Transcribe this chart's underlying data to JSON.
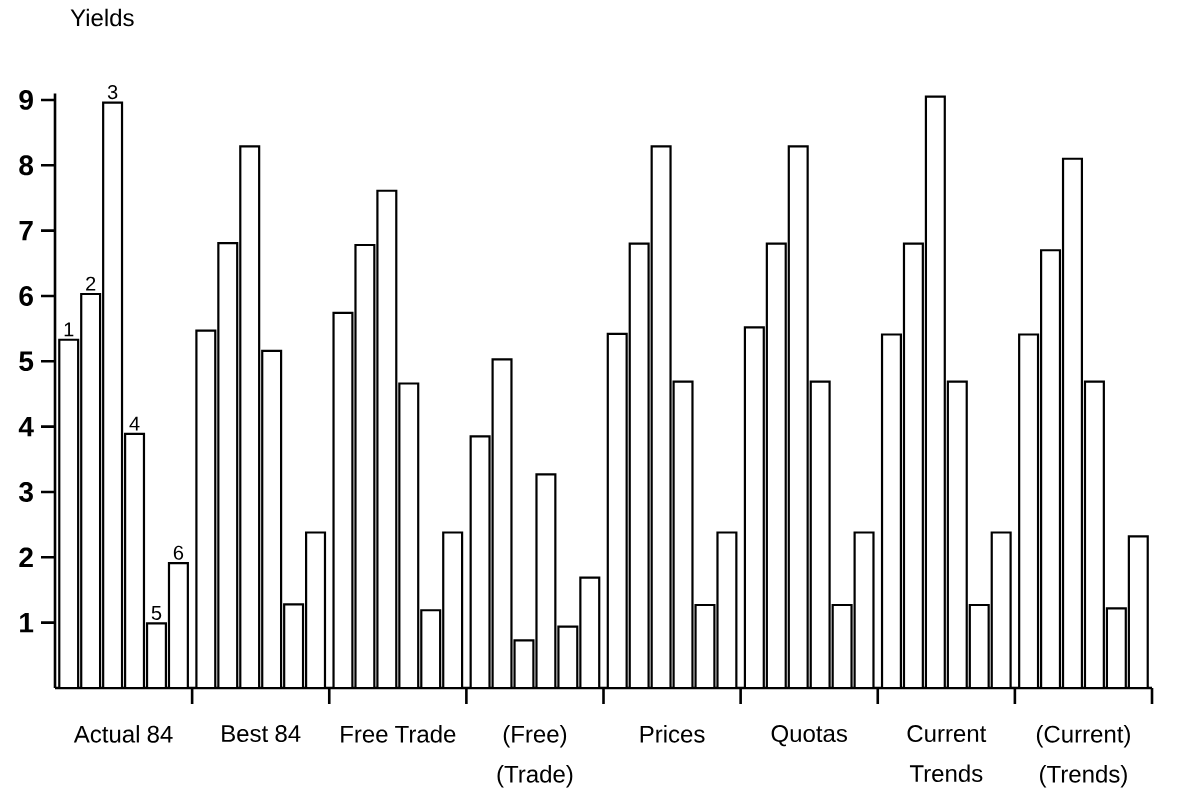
{
  "chart_data": {
    "type": "bar",
    "ylabel": "Yields",
    "categories": [
      "Actual 84",
      "Best 84",
      "Free Trade",
      "(Free) (Trade)",
      "Prices",
      "Quotas",
      "Current Trends",
      "(Current) (Trends)"
    ],
    "series": [
      {
        "name": "1",
        "color": "#ffffff",
        "values": [
          5.33,
          5.47,
          5.74,
          3.85,
          5.42,
          5.52,
          5.41,
          5.41
        ]
      },
      {
        "name": "2",
        "color": "#ffffff",
        "values": [
          6.03,
          6.81,
          6.78,
          5.03,
          6.8,
          6.8,
          6.8,
          6.7
        ]
      },
      {
        "name": "3",
        "color": "#ffffff",
        "values": [
          8.96,
          8.29,
          7.61,
          0.73,
          8.29,
          8.29,
          9.05,
          8.1
        ]
      },
      {
        "name": "4",
        "color": "#ffffff",
        "values": [
          3.89,
          5.16,
          4.66,
          3.27,
          4.69,
          4.69,
          4.69,
          4.69
        ]
      },
      {
        "name": "5",
        "color": "#ffffff",
        "values": [
          0.99,
          1.28,
          1.19,
          0.94,
          1.27,
          1.27,
          1.27,
          1.22
        ]
      },
      {
        "name": "6",
        "color": "#ffffff",
        "values": [
          1.91,
          2.38,
          2.38,
          1.69,
          2.38,
          2.38,
          2.38,
          2.32
        ]
      }
    ],
    "ylim": [
      0,
      9.1
    ],
    "yticks": [
      1,
      2,
      3,
      4,
      5,
      6,
      7,
      8,
      9
    ]
  }
}
